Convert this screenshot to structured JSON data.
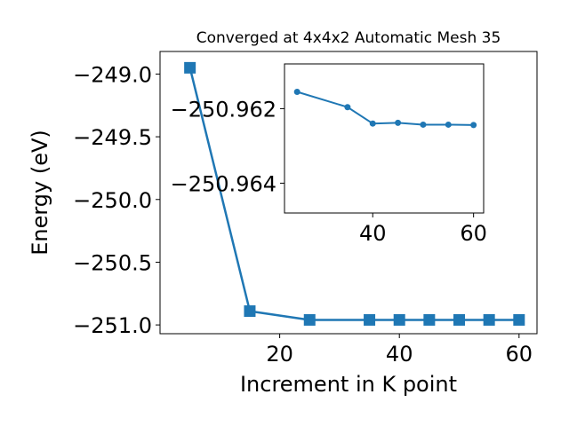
{
  "chart_data": [
    {
      "type": "line",
      "title": "Converged at 4x4x2 Automatic Mesh 35",
      "xlabel": "Increment in K point",
      "ylabel": "Energy (eV)",
      "xlim": [
        0,
        63
      ],
      "ylim": [
        -251.07,
        -248.82
      ],
      "xticks": [
        20,
        40,
        60
      ],
      "xtick_labels": [
        "20",
        "40",
        "60"
      ],
      "yticks": [
        -251.0,
        -250.5,
        -250.0,
        -249.5,
        -249.0
      ],
      "ytick_labels": [
        "−251.0",
        "−250.5",
        "−250.0",
        "−249.5",
        "−249.0"
      ],
      "color": "#1f77b4",
      "marker": "square",
      "series": [
        {
          "x": [
            5,
            15,
            25,
            35,
            40,
            45,
            50,
            55,
            60
          ],
          "y": [
            -248.95,
            -250.89,
            -250.96,
            -250.96,
            -250.96,
            -250.96,
            -250.96,
            -250.96,
            -250.96
          ]
        }
      ]
    },
    {
      "type": "line",
      "title": "",
      "xlabel": "",
      "ylabel": "",
      "xlim": [
        22.5,
        62
      ],
      "ylim": [
        -250.9648,
        -250.9608
      ],
      "xticks": [
        40,
        60
      ],
      "xtick_labels": [
        "40",
        "60"
      ],
      "yticks": [
        -250.964,
        -250.962
      ],
      "ytick_labels": [
        "−250.964",
        "−250.962"
      ],
      "color": "#1f77b4",
      "marker": "circle",
      "series": [
        {
          "x": [
            25,
            35,
            40,
            45,
            50,
            55,
            60
          ],
          "y": [
            -250.96155,
            -250.96196,
            -250.9624,
            -250.96238,
            -250.96243,
            -250.96243,
            -250.96244
          ]
        }
      ]
    }
  ]
}
